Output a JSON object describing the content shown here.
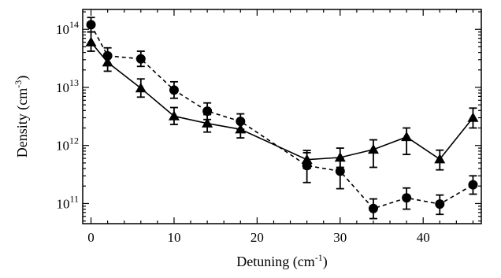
{
  "chart_data": {
    "type": "scatter",
    "xlabel": "Detuning (cm",
    "xlabel_sup": "-1",
    "xlabel_end": ")",
    "ylabel": "Density (cm",
    "ylabel_sup": "-3",
    "ylabel_end": ")",
    "xlim": [
      -1,
      47
    ],
    "ylim": [
      45000000000,
      220000000000000
    ],
    "yscale": "log",
    "grid": false,
    "x_ticks": [
      0,
      10,
      20,
      30,
      40
    ],
    "y_ticks": [
      {
        "value": 100000000000,
        "base": "10",
        "exp": "11"
      },
      {
        "value": 1000000000000,
        "base": "10",
        "exp": "12"
      },
      {
        "value": 10000000000000,
        "base": "10",
        "exp": "13"
      },
      {
        "value": 100000000000000,
        "base": "10",
        "exp": "14"
      }
    ],
    "series": [
      {
        "marker": "circle",
        "line": "dashed",
        "points": [
          {
            "x": 0,
            "y": 120000000000000,
            "lo": 90000000000000,
            "hi": 160000000000000
          },
          {
            "x": 2,
            "y": 35000000000000,
            "lo": 25000000000000,
            "hi": 48000000000000
          },
          {
            "x": 6,
            "y": 31000000000000,
            "lo": 23000000000000,
            "hi": 42000000000000
          },
          {
            "x": 10,
            "y": 9000000000000,
            "lo": 6500000000000,
            "hi": 12500000000000
          },
          {
            "x": 14,
            "y": 3900000000000,
            "lo": 2800000000000,
            "hi": 5400000000000
          },
          {
            "x": 18,
            "y": 2600000000000,
            "lo": 1900000000000,
            "hi": 3500000000000
          },
          {
            "x": 26,
            "y": 450000000000,
            "lo": 230000000000,
            "hi": 750000000000
          },
          {
            "x": 30,
            "y": 360000000000,
            "lo": 180000000000,
            "hi": 600000000000
          },
          {
            "x": 34,
            "y": 82000000000,
            "lo": 55000000000,
            "hi": 120000000000
          },
          {
            "x": 38,
            "y": 125000000000,
            "lo": 80000000000,
            "hi": 185000000000
          },
          {
            "x": 42,
            "y": 98000000000,
            "lo": 65000000000,
            "hi": 140000000000
          },
          {
            "x": 46,
            "y": 210000000000,
            "lo": 145000000000,
            "hi": 300000000000
          }
        ]
      },
      {
        "marker": "triangle",
        "line": "solid",
        "points": [
          {
            "x": 0,
            "y": 60000000000000,
            "lo": 42000000000000,
            "hi": 90000000000000
          },
          {
            "x": 2,
            "y": 27000000000000,
            "lo": 19000000000000,
            "hi": 38000000000000
          },
          {
            "x": 6,
            "y": 9700000000000,
            "lo": 6800000000000,
            "hi": 14000000000000
          },
          {
            "x": 10,
            "y": 3200000000000,
            "lo": 2300000000000,
            "hi": 4500000000000
          },
          {
            "x": 14,
            "y": 2400000000000,
            "lo": 1700000000000,
            "hi": 3400000000000
          },
          {
            "x": 18,
            "y": 1900000000000,
            "lo": 1350000000000,
            "hi": 2700000000000
          },
          {
            "x": 26,
            "y": 570000000000,
            "lo": 400000000000,
            "hi": 820000000000
          },
          {
            "x": 30,
            "y": 620000000000,
            "lo": 420000000000,
            "hi": 900000000000
          },
          {
            "x": 34,
            "y": 850000000000,
            "lo": 420000000000,
            "hi": 1250000000000
          },
          {
            "x": 38,
            "y": 1400000000000,
            "lo": 700000000000,
            "hi": 2000000000000
          },
          {
            "x": 42,
            "y": 580000000000,
            "lo": 380000000000,
            "hi": 830000000000
          },
          {
            "x": 46,
            "y": 3000000000000,
            "lo": 2000000000000,
            "hi": 4400000000000
          }
        ]
      }
    ]
  }
}
